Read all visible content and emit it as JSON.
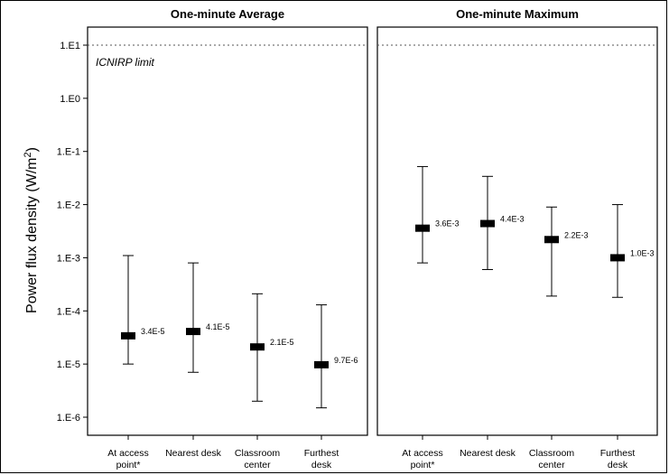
{
  "chart_data": {
    "type": "errorbar",
    "y_axis": {
      "label": "Power flux density (W/m",
      "label_sup": "2",
      "label_close": ")",
      "scale": "log",
      "ylim": [
        1e-06,
        10
      ],
      "ticks": [
        {
          "value": 10,
          "label": "1.E1"
        },
        {
          "value": 1,
          "label": "1.E0"
        },
        {
          "value": 0.1,
          "label": "1.E-1"
        },
        {
          "value": 0.01,
          "label": "1.E-2"
        },
        {
          "value": 0.001,
          "label": "1.E-3"
        },
        {
          "value": 0.0001,
          "label": "1.E-4"
        },
        {
          "value": 1e-05,
          "label": "1.E-5"
        },
        {
          "value": 1e-06,
          "label": "1.E-6"
        }
      ]
    },
    "reference_line": {
      "value": 10,
      "label": "ICNIRP limit"
    },
    "panels": [
      {
        "title": "One-minute Average",
        "categories": [
          {
            "line1": "At access",
            "line2": "point*"
          },
          {
            "line1": "Nearest desk",
            "line2": ""
          },
          {
            "line1": "Classroom",
            "line2": "center"
          },
          {
            "line1": "Furthest",
            "line2": "desk"
          }
        ],
        "points": [
          {
            "value": 3.4e-05,
            "label": "3.4E-5",
            "low": 1e-05,
            "high": 0.0011
          },
          {
            "value": 4.1e-05,
            "label": "4.1E-5",
            "low": 7e-06,
            "high": 0.0008
          },
          {
            "value": 2.1e-05,
            "label": "2.1E-5",
            "low": 2e-06,
            "high": 0.00021
          },
          {
            "value": 9.7e-06,
            "label": "9.7E-6",
            "low": 1.5e-06,
            "high": 0.00013
          }
        ]
      },
      {
        "title": "One-minute Maximum",
        "categories": [
          {
            "line1": "At access",
            "line2": "point*"
          },
          {
            "line1": "Nearest desk",
            "line2": ""
          },
          {
            "line1": "Classroom",
            "line2": "center"
          },
          {
            "line1": "Furthest",
            "line2": "desk"
          }
        ],
        "points": [
          {
            "value": 0.0036,
            "label": "3.6E-3",
            "low": 0.0008,
            "high": 0.052
          },
          {
            "value": 0.0044,
            "label": "4.4E-3",
            "low": 0.0006,
            "high": 0.034
          },
          {
            "value": 0.0022,
            "label": "2.2E-3",
            "low": 0.00019,
            "high": 0.009
          },
          {
            "value": 0.001,
            "label": "1.0E-3",
            "low": 0.00018,
            "high": 0.01
          }
        ]
      }
    ]
  }
}
